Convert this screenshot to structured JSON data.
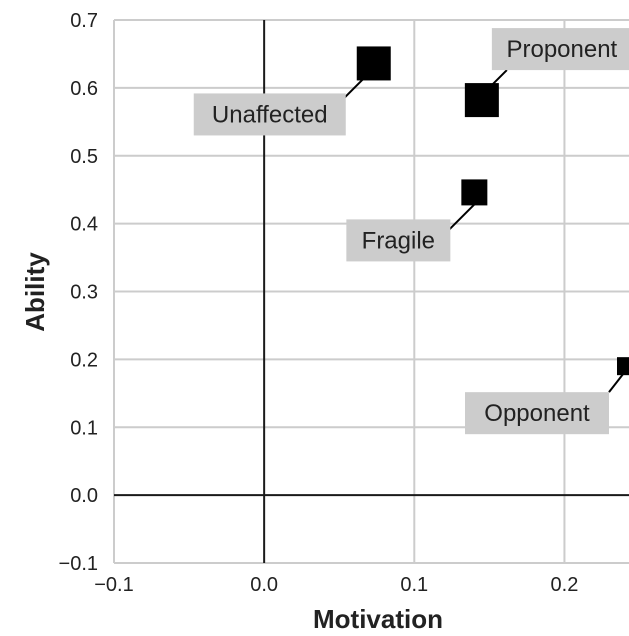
{
  "chart_data": {
    "type": "scatter",
    "xlabel": "Motivation",
    "ylabel": "Ability",
    "xlim": [
      -0.1,
      0.243
    ],
    "ylim": [
      -0.1,
      0.7
    ],
    "x_ticks": [
      "−0.1",
      "0.0",
      "0.1",
      "0.2"
    ],
    "y_ticks": [
      "0.7",
      "0.6",
      "0.5",
      "0.4",
      "0.3",
      "0.2",
      "0.1",
      "0.0",
      "−0.1"
    ],
    "grid": true,
    "points": [
      {
        "label": "Unaffected",
        "x": 0.073,
        "y": 0.636,
        "size": "large"
      },
      {
        "label": "Proponent",
        "x": 0.145,
        "y": 0.582,
        "size": "large"
      },
      {
        "label": "Fragile",
        "x": 0.14,
        "y": 0.446,
        "size": "medium"
      },
      {
        "label": "Opponent",
        "x": 0.241,
        "y": 0.19,
        "size": "small"
      }
    ],
    "marker_color": "#000000",
    "label_box_color": "#cccccc"
  }
}
